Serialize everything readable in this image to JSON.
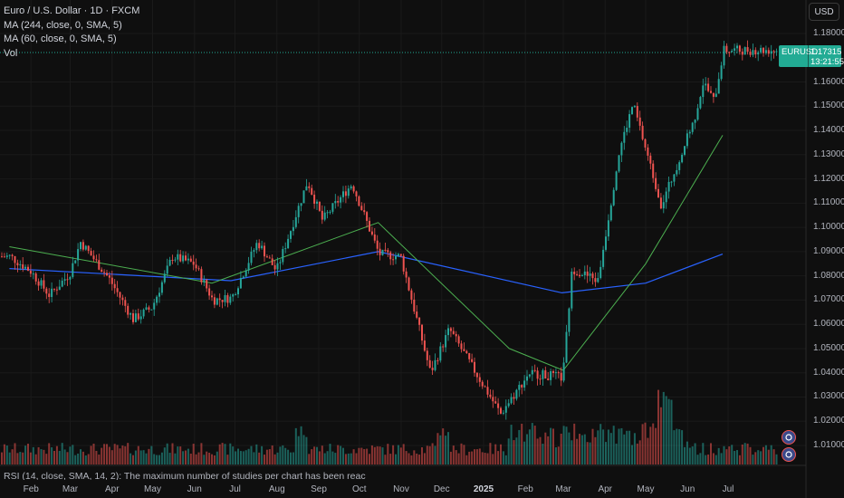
{
  "legend": {
    "title": "Euro / U.S. Dollar · 1D · FXCM",
    "ma1": "MA (244, close, 0, SMA, 5)",
    "ma2": "MA (60, close, 0, SMA, 5)",
    "vol": "Vol"
  },
  "currency_button": "USD",
  "last_price": {
    "symbol": "EURUSD",
    "price": "1.17315",
    "countdown": "13:21:55"
  },
  "price_axis": [
    "1.18000",
    "1.16000",
    "1.15000",
    "1.14000",
    "1.13000",
    "1.12000",
    "1.11000",
    "1.10000",
    "1.09000",
    "1.08000",
    "1.07000",
    "1.06000",
    "1.05000",
    "1.04000",
    "1.03000",
    "1.02000",
    "1.01000"
  ],
  "time_axis": [
    "Feb",
    "Mar",
    "Apr",
    "May",
    "Jun",
    "Jul",
    "Aug",
    "Sep",
    "Oct",
    "Nov",
    "Dec",
    "2025",
    "Feb",
    "Mar",
    "Apr",
    "May",
    "Jun",
    "Jul"
  ],
  "rsi_note": "RSI (14, close, SMA, 14, 2): The maximum number of studies per chart has been reached for current subscription",
  "colors": {
    "up": "#26a69a",
    "down": "#ef5350",
    "ma244": "#2962ff",
    "ma60": "#4caf50",
    "last": "#22ab94",
    "bg": "#0f0f0f"
  },
  "chart_data": {
    "type": "candlestick",
    "symbol": "EURUSD",
    "interval": "1D",
    "ylim": [
      1.005,
      1.185
    ],
    "close_path": [
      [
        "2024-01-16",
        1.088
      ],
      [
        "2024-01-31",
        1.082
      ],
      [
        "2024-02-14",
        1.072
      ],
      [
        "2024-02-29",
        1.081
      ],
      [
        "2024-03-08",
        1.094
      ],
      [
        "2024-03-29",
        1.079
      ],
      [
        "2024-04-16",
        1.062
      ],
      [
        "2024-04-30",
        1.067
      ],
      [
        "2024-05-15",
        1.088
      ],
      [
        "2024-05-31",
        1.085
      ],
      [
        "2024-06-14",
        1.07
      ],
      [
        "2024-06-28",
        1.071
      ],
      [
        "2024-07-17",
        1.094
      ],
      [
        "2024-07-31",
        1.082
      ],
      [
        "2024-08-23",
        1.119
      ],
      [
        "2024-09-03",
        1.103
      ],
      [
        "2024-09-25",
        1.118
      ],
      [
        "2024-10-15",
        1.089
      ],
      [
        "2024-10-31",
        1.088
      ],
      [
        "2024-11-22",
        1.04
      ],
      [
        "2024-12-06",
        1.058
      ],
      [
        "2024-12-31",
        1.035
      ],
      [
        "2025-01-13",
        1.023
      ],
      [
        "2025-02-03",
        1.04
      ],
      [
        "2025-02-28",
        1.038
      ],
      [
        "2025-03-07",
        1.083
      ],
      [
        "2025-03-26",
        1.078
      ],
      [
        "2025-04-11",
        1.132
      ],
      [
        "2025-04-21",
        1.151
      ],
      [
        "2025-05-12",
        1.109
      ],
      [
        "2025-06-05",
        1.144
      ],
      [
        "2025-06-12",
        1.16
      ],
      [
        "2025-06-20",
        1.152
      ],
      [
        "2025-06-27",
        1.17315
      ]
    ],
    "series": [
      {
        "name": "MA (244, close, 0, SMA, 5)",
        "points": [
          [
            "2024-01-16",
            1.083
          ],
          [
            "2024-06-28",
            1.078
          ],
          [
            "2024-10-15",
            1.09
          ],
          [
            "2025-02-28",
            1.073
          ],
          [
            "2025-05-01",
            1.077
          ],
          [
            "2025-06-27",
            1.089
          ]
        ]
      },
      {
        "name": "MA (60, close, 0, SMA, 5)",
        "points": [
          [
            "2024-01-16",
            1.092
          ],
          [
            "2024-06-14",
            1.077
          ],
          [
            "2024-10-15",
            1.102
          ],
          [
            "2025-01-20",
            1.05
          ],
          [
            "2025-03-01",
            1.041
          ],
          [
            "2025-05-01",
            1.085
          ],
          [
            "2025-06-27",
            1.138
          ]
        ]
      }
    ],
    "volume": "bars below price, colored by candle direction, higher activity in Aug 2024, Nov 2024, Jan–Apr 2025"
  }
}
